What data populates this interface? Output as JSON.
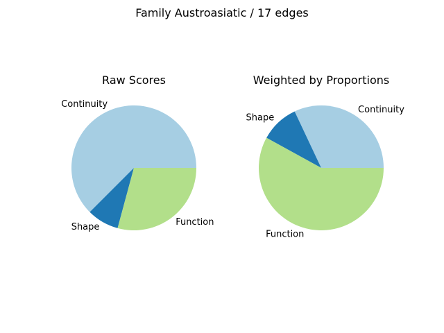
{
  "figure": {
    "title": "Family Austroasiatic / 17 edges"
  },
  "chart_data": [
    {
      "type": "pie",
      "title": "Raw Scores",
      "slices": [
        {
          "label": "Continuity",
          "value": 0.625,
          "color": "#a6cee3"
        },
        {
          "label": "Shape",
          "value": 0.083,
          "color": "#1f78b4"
        },
        {
          "label": "Function",
          "value": 0.292,
          "color": "#b2df8a"
        }
      ],
      "start_angle_deg": 0,
      "direction": "counterclockwise"
    },
    {
      "type": "pie",
      "title": "Weighted by Proportions",
      "slices": [
        {
          "label": "Continuity",
          "value": 0.32,
          "color": "#a6cee3"
        },
        {
          "label": "Shape",
          "value": 0.1,
          "color": "#1f78b4"
        },
        {
          "label": "Function",
          "value": 0.58,
          "color": "#b2df8a"
        }
      ],
      "start_angle_deg": 0,
      "direction": "counterclockwise"
    }
  ]
}
